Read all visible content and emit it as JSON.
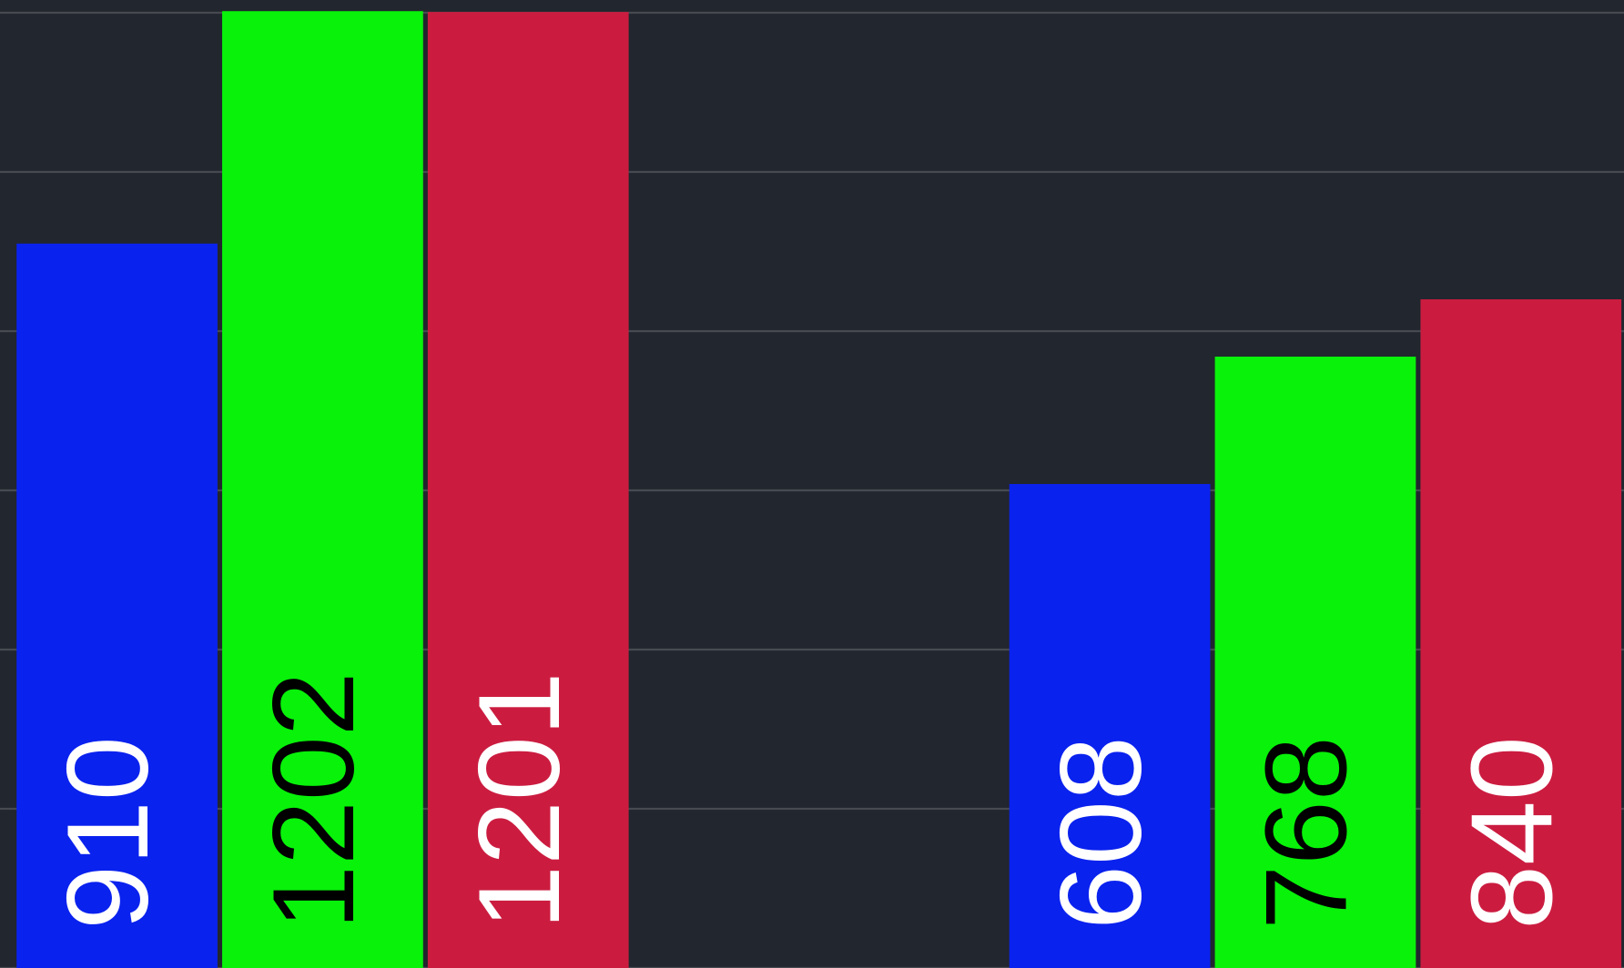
{
  "chart_data": {
    "type": "bar",
    "categories": [
      null,
      null
    ],
    "series": [
      {
        "color": "#0a22ee",
        "label_color": "#ffffff",
        "values": [
          910,
          608
        ]
      },
      {
        "color": "#08f20a",
        "label_color": "#000000",
        "values": [
          1202,
          768
        ]
      },
      {
        "color": "#cb1c40",
        "label_color": "#ffffff",
        "values": [
          1201,
          840
        ]
      }
    ],
    "ylim": [
      0,
      1216
    ],
    "yticks": [
      0,
      200,
      400,
      600,
      800,
      1000,
      1200
    ],
    "grid": true,
    "background": "#22262e",
    "grid_color": "#474a50"
  }
}
